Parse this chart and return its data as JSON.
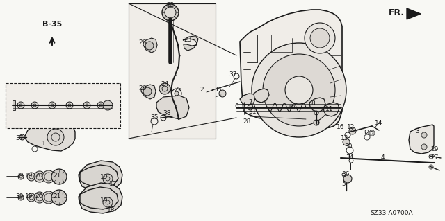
{
  "bg_color": "#f5f5f0",
  "line_color": "#1a1a1a",
  "lw_main": 0.9,
  "lw_thin": 0.5,
  "diagram_code": "SZ33-A0700A",
  "figsize": [
    6.4,
    3.19
  ],
  "dpi": 100
}
